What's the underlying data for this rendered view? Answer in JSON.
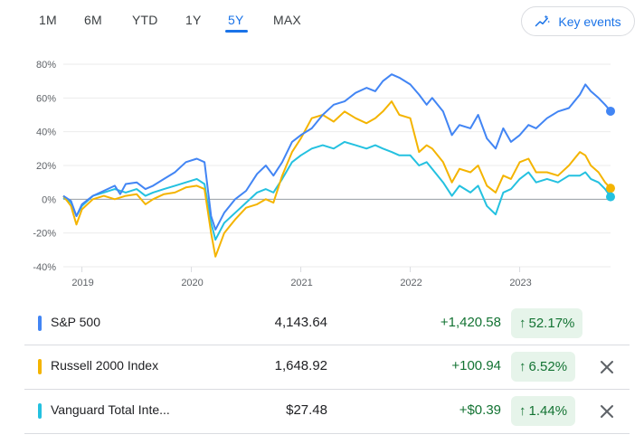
{
  "tabs": [
    {
      "label": "1M",
      "active": false
    },
    {
      "label": "6M",
      "active": false
    },
    {
      "label": "YTD",
      "active": false
    },
    {
      "label": "1Y",
      "active": false
    },
    {
      "label": "5Y",
      "active": true
    },
    {
      "label": "MAX",
      "active": false
    }
  ],
  "key_events": {
    "label": "Key events",
    "icon": "trend-sparkle-icon"
  },
  "colors": {
    "sp500": "#4285f4",
    "russell": "#f4b400",
    "vanguard": "#24c1e0",
    "gain": "#137333",
    "gain_bg": "#e6f4ea",
    "accent": "#1a73e8"
  },
  "chart_data": {
    "type": "line",
    "xlabel": "",
    "ylabel": "",
    "y_ticks": [
      "80%",
      "60%",
      "40%",
      "20%",
      "0%",
      "-20%",
      "-40%"
    ],
    "ylim": [
      -40,
      80
    ],
    "x_ticks": [
      "2019",
      "2020",
      "2021",
      "2022",
      "2023"
    ],
    "xlim": [
      2018.83,
      2023.83
    ],
    "baseline": 0,
    "series": [
      {
        "name": "S&P 500",
        "points": [
          [
            2018.83,
            2
          ],
          [
            2018.9,
            -1
          ],
          [
            2018.95,
            -10
          ],
          [
            2019.0,
            -3
          ],
          [
            2019.1,
            2
          ],
          [
            2019.2,
            5
          ],
          [
            2019.3,
            8
          ],
          [
            2019.35,
            3
          ],
          [
            2019.4,
            9
          ],
          [
            2019.5,
            10
          ],
          [
            2019.58,
            6
          ],
          [
            2019.65,
            8
          ],
          [
            2019.75,
            12
          ],
          [
            2019.85,
            16
          ],
          [
            2019.95,
            22
          ],
          [
            2020.05,
            24
          ],
          [
            2020.12,
            22
          ],
          [
            2020.18,
            -10
          ],
          [
            2020.22,
            -18
          ],
          [
            2020.3,
            -8
          ],
          [
            2020.4,
            0
          ],
          [
            2020.5,
            5
          ],
          [
            2020.6,
            15
          ],
          [
            2020.68,
            20
          ],
          [
            2020.75,
            14
          ],
          [
            2020.83,
            22
          ],
          [
            2020.92,
            34
          ],
          [
            2021.0,
            38
          ],
          [
            2021.1,
            42
          ],
          [
            2021.2,
            50
          ],
          [
            2021.3,
            56
          ],
          [
            2021.4,
            58
          ],
          [
            2021.5,
            63
          ],
          [
            2021.6,
            66
          ],
          [
            2021.68,
            64
          ],
          [
            2021.75,
            70
          ],
          [
            2021.83,
            74
          ],
          [
            2021.9,
            72
          ],
          [
            2022.0,
            68
          ],
          [
            2022.08,
            62
          ],
          [
            2022.15,
            56
          ],
          [
            2022.2,
            60
          ],
          [
            2022.3,
            52
          ],
          [
            2022.38,
            38
          ],
          [
            2022.45,
            44
          ],
          [
            2022.55,
            42
          ],
          [
            2022.62,
            50
          ],
          [
            2022.7,
            36
          ],
          [
            2022.78,
            30
          ],
          [
            2022.85,
            42
          ],
          [
            2022.92,
            34
          ],
          [
            2023.0,
            38
          ],
          [
            2023.08,
            44
          ],
          [
            2023.15,
            42
          ],
          [
            2023.25,
            48
          ],
          [
            2023.35,
            52
          ],
          [
            2023.45,
            54
          ],
          [
            2023.55,
            62
          ],
          [
            2023.6,
            68
          ],
          [
            2023.65,
            64
          ],
          [
            2023.72,
            60
          ],
          [
            2023.78,
            56
          ],
          [
            2023.83,
            52.17
          ]
        ]
      },
      {
        "name": "Russell 2000 Index",
        "points": [
          [
            2018.83,
            2
          ],
          [
            2018.9,
            -4
          ],
          [
            2018.95,
            -15
          ],
          [
            2019.0,
            -6
          ],
          [
            2019.1,
            0
          ],
          [
            2019.2,
            2
          ],
          [
            2019.3,
            0
          ],
          [
            2019.4,
            2
          ],
          [
            2019.5,
            3
          ],
          [
            2019.58,
            -3
          ],
          [
            2019.65,
            0
          ],
          [
            2019.75,
            3
          ],
          [
            2019.85,
            4
          ],
          [
            2019.95,
            7
          ],
          [
            2020.05,
            8
          ],
          [
            2020.12,
            6
          ],
          [
            2020.18,
            -20
          ],
          [
            2020.22,
            -34
          ],
          [
            2020.3,
            -20
          ],
          [
            2020.4,
            -12
          ],
          [
            2020.5,
            -5
          ],
          [
            2020.6,
            -3
          ],
          [
            2020.68,
            0
          ],
          [
            2020.75,
            -2
          ],
          [
            2020.83,
            14
          ],
          [
            2020.92,
            28
          ],
          [
            2021.0,
            36
          ],
          [
            2021.1,
            48
          ],
          [
            2021.2,
            50
          ],
          [
            2021.3,
            46
          ],
          [
            2021.4,
            52
          ],
          [
            2021.5,
            48
          ],
          [
            2021.6,
            45
          ],
          [
            2021.68,
            48
          ],
          [
            2021.75,
            52
          ],
          [
            2021.83,
            58
          ],
          [
            2021.9,
            50
          ],
          [
            2022.0,
            48
          ],
          [
            2022.08,
            28
          ],
          [
            2022.15,
            32
          ],
          [
            2022.2,
            30
          ],
          [
            2022.3,
            22
          ],
          [
            2022.38,
            10
          ],
          [
            2022.45,
            18
          ],
          [
            2022.55,
            16
          ],
          [
            2022.62,
            20
          ],
          [
            2022.7,
            8
          ],
          [
            2022.78,
            4
          ],
          [
            2022.85,
            14
          ],
          [
            2022.92,
            12
          ],
          [
            2023.0,
            22
          ],
          [
            2023.08,
            24
          ],
          [
            2023.15,
            16
          ],
          [
            2023.25,
            16
          ],
          [
            2023.35,
            14
          ],
          [
            2023.45,
            20
          ],
          [
            2023.55,
            28
          ],
          [
            2023.6,
            26
          ],
          [
            2023.65,
            20
          ],
          [
            2023.72,
            16
          ],
          [
            2023.78,
            10
          ],
          [
            2023.83,
            6.52
          ]
        ]
      },
      {
        "name": "Vanguard Total Inte...",
        "points": [
          [
            2018.83,
            1
          ],
          [
            2018.9,
            -2
          ],
          [
            2018.95,
            -10
          ],
          [
            2019.0,
            -4
          ],
          [
            2019.1,
            2
          ],
          [
            2019.2,
            4
          ],
          [
            2019.3,
            6
          ],
          [
            2019.4,
            4
          ],
          [
            2019.5,
            6
          ],
          [
            2019.58,
            2
          ],
          [
            2019.65,
            4
          ],
          [
            2019.75,
            6
          ],
          [
            2019.85,
            8
          ],
          [
            2019.95,
            10
          ],
          [
            2020.05,
            12
          ],
          [
            2020.12,
            9
          ],
          [
            2020.18,
            -14
          ],
          [
            2020.22,
            -24
          ],
          [
            2020.3,
            -14
          ],
          [
            2020.4,
            -8
          ],
          [
            2020.5,
            -2
          ],
          [
            2020.6,
            4
          ],
          [
            2020.68,
            6
          ],
          [
            2020.75,
            4
          ],
          [
            2020.83,
            12
          ],
          [
            2020.92,
            22
          ],
          [
            2021.0,
            26
          ],
          [
            2021.1,
            30
          ],
          [
            2021.2,
            32
          ],
          [
            2021.3,
            30
          ],
          [
            2021.4,
            34
          ],
          [
            2021.5,
            32
          ],
          [
            2021.6,
            30
          ],
          [
            2021.68,
            32
          ],
          [
            2021.75,
            30
          ],
          [
            2021.83,
            28
          ],
          [
            2021.9,
            26
          ],
          [
            2022.0,
            26
          ],
          [
            2022.08,
            20
          ],
          [
            2022.15,
            22
          ],
          [
            2022.2,
            18
          ],
          [
            2022.3,
            10
          ],
          [
            2022.38,
            2
          ],
          [
            2022.45,
            8
          ],
          [
            2022.55,
            4
          ],
          [
            2022.62,
            8
          ],
          [
            2022.7,
            -4
          ],
          [
            2022.78,
            -9
          ],
          [
            2022.85,
            4
          ],
          [
            2022.92,
            6
          ],
          [
            2023.0,
            12
          ],
          [
            2023.08,
            16
          ],
          [
            2023.15,
            10
          ],
          [
            2023.25,
            12
          ],
          [
            2023.35,
            10
          ],
          [
            2023.45,
            14
          ],
          [
            2023.55,
            14
          ],
          [
            2023.6,
            16
          ],
          [
            2023.65,
            12
          ],
          [
            2023.72,
            10
          ],
          [
            2023.78,
            6
          ],
          [
            2023.83,
            1.44
          ]
        ]
      }
    ]
  },
  "legend": [
    {
      "name": "S&P 500",
      "price": "4,143.64",
      "change": "+1,420.58",
      "percent": "52.17%",
      "removable": false,
      "color": "#4285f4"
    },
    {
      "name": "Russell 2000 Index",
      "price": "1,648.92",
      "change": "+100.94",
      "percent": "6.52%",
      "removable": true,
      "color": "#f4b400"
    },
    {
      "name": "Vanguard Total Inte...",
      "price": "$27.48",
      "change": "+$0.39",
      "percent": "1.44%",
      "removable": true,
      "color": "#24c1e0"
    }
  ],
  "icons": {
    "up_arrow": "up-arrow-icon",
    "close": "close-icon"
  }
}
